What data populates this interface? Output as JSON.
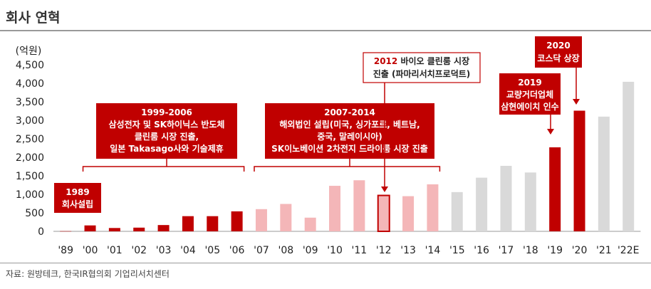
{
  "page": {
    "title": "회사 연혁",
    "source": "자료: 원방테크, 한국IR협의회 기업리서치센터"
  },
  "colors": {
    "dark": "#c00000",
    "light": "#f4b6b8",
    "gray": "#d9d9d9",
    "outline": "#c00000"
  },
  "chart_data": {
    "type": "bar",
    "title": "회사 연혁",
    "ylabel": "(억원)",
    "xlabel": "",
    "ylim": [
      0,
      4500
    ],
    "yticks": [
      "0",
      "500",
      "1,000",
      "1,500",
      "2,000",
      "2,500",
      "3,000",
      "3,500",
      "4,000",
      "4,500"
    ],
    "categories": [
      "'89",
      "'00",
      "'01",
      "'02",
      "'03",
      "'04",
      "'05",
      "'06",
      "'07",
      "'08",
      "'09",
      "'10",
      "'11",
      "'12",
      "'13",
      "'14",
      "'15",
      "'16",
      "'17",
      "'18",
      "'19",
      "'20",
      "'21",
      "'22E"
    ],
    "values": [
      5,
      160,
      90,
      100,
      170,
      410,
      410,
      540,
      600,
      740,
      370,
      1230,
      1380,
      970,
      950,
      1270,
      1060,
      1450,
      1770,
      1590,
      2270,
      3260,
      3100,
      4040
    ],
    "styles": [
      "dark",
      "dark",
      "dark",
      "dark",
      "dark",
      "dark",
      "dark",
      "dark",
      "light",
      "light",
      "light",
      "light",
      "light",
      "outline",
      "light",
      "light",
      "gray",
      "gray",
      "gray",
      "gray",
      "dark",
      "dark",
      "gray",
      "gray"
    ],
    "annotations": [
      {
        "id": "a1989",
        "lines": [
          "1989",
          "회사설립"
        ]
      },
      {
        "id": "a1999",
        "lines": [
          "1999-2006",
          "삼성전자 및 SK하이닉스 반도체",
          "클린룸 시장 진출,",
          "일본 Takasago사와 기술제휴"
        ]
      },
      {
        "id": "a2007",
        "lines": [
          "2007-2014",
          "해외법인 설립(미국, 싱가포르, 베트남,",
          "중국, 말레이시아)",
          "SK이노베이션 2차전지 드라이룸 시장 진출"
        ]
      },
      {
        "id": "a2012",
        "year": "2012",
        "lines": [
          " 바이오 클린룸 시장",
          "진출 (파마리서치프로덕트)"
        ]
      },
      {
        "id": "a2019",
        "lines": [
          "2019",
          "교량거더업체",
          "삼현에이치 인수"
        ]
      },
      {
        "id": "a2020",
        "lines": [
          "2020",
          "코스닥 상장"
        ]
      }
    ]
  }
}
